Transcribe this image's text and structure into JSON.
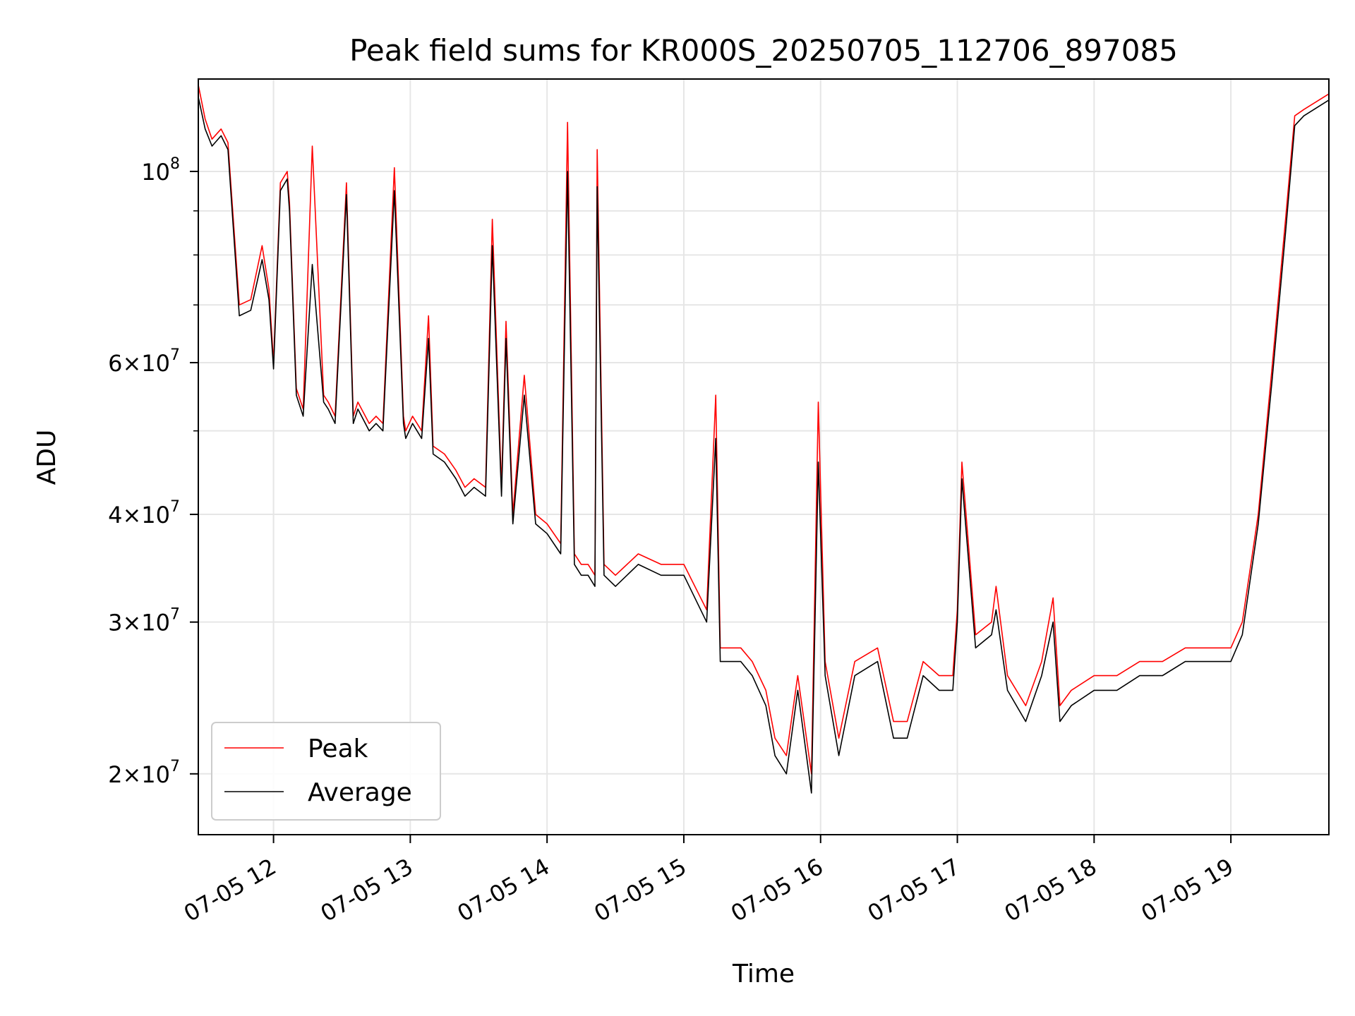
{
  "chart_data": {
    "type": "line",
    "title": "Peak field sums for KR000S_20250705_112706_897085",
    "xlabel": "Time",
    "ylabel": "ADU",
    "yscale": "log",
    "xlim": [
      "07-05 11:27",
      "07-05 19:43"
    ],
    "ylim": [
      17000000,
      128000000
    ],
    "grid": true,
    "legend_position": "lower-left",
    "x_tick_labels": [
      "07-05 12",
      "07-05 13",
      "07-05 14",
      "07-05 15",
      "07-05 16",
      "07-05 17",
      "07-05 18",
      "07-05 19"
    ],
    "x_ticks": [
      "07-05 12:00",
      "07-05 13:00",
      "07-05 14:00",
      "07-05 15:00",
      "07-05 16:00",
      "07-05 17:00",
      "07-05 18:00",
      "07-05 19:00"
    ],
    "y_ticks": [
      {
        "value": 20000000,
        "coef": "2",
        "exp": "7"
      },
      {
        "value": 30000000,
        "coef": "3",
        "exp": "7"
      },
      {
        "value": 40000000,
        "coef": "4",
        "exp": "7"
      },
      {
        "value": 60000000,
        "coef": "6",
        "exp": "7"
      },
      {
        "value": 100000000,
        "coef": "",
        "exp": "8"
      }
    ],
    "y_minor_ticks": [
      50000000,
      70000000,
      80000000,
      90000000
    ],
    "colors": {
      "Peak": "#ff0000",
      "Average": "#000000"
    },
    "series": [
      {
        "name": "Peak",
        "x": [
          "07-05 11:27",
          "07-05 11:30",
          "07-05 11:33",
          "07-05 11:37",
          "07-05 11:40",
          "07-05 11:45",
          "07-05 11:50",
          "07-05 11:55",
          "07-05 11:58",
          "07-05 12:00",
          "07-05 12:03",
          "07-05 12:06",
          "07-05 12:07",
          "07-05 12:10",
          "07-05 12:13",
          "07-05 12:17",
          "07-05 12:22",
          "07-05 12:24",
          "07-05 12:27",
          "07-05 12:32",
          "07-05 12:35",
          "07-05 12:37",
          "07-05 12:42",
          "07-05 12:45",
          "07-05 12:48",
          "07-05 12:53",
          "07-05 12:57",
          "07-05 12:58",
          "07-05 13:01",
          "07-05 13:05",
          "07-05 13:08",
          "07-05 13:10",
          "07-05 13:15",
          "07-05 13:20",
          "07-05 13:24",
          "07-05 13:28",
          "07-05 13:33",
          "07-05 13:36",
          "07-05 13:40",
          "07-05 13:42",
          "07-05 13:45",
          "07-05 13:50",
          "07-05 13:55",
          "07-05 14:00",
          "07-05 14:06",
          "07-05 14:09",
          "07-05 14:12",
          "07-05 14:15",
          "07-05 14:18",
          "07-05 14:21",
          "07-05 14:22",
          "07-05 14:25",
          "07-05 14:30",
          "07-05 14:40",
          "07-05 14:50",
          "07-05 15:00",
          "07-05 15:10",
          "07-05 15:14",
          "07-05 15:16",
          "07-05 15:20",
          "07-05 15:25",
          "07-05 15:30",
          "07-05 15:36",
          "07-05 15:40",
          "07-05 15:45",
          "07-05 15:50",
          "07-05 15:56",
          "07-05 15:59",
          "07-05 16:02",
          "07-05 16:08",
          "07-05 16:15",
          "07-05 16:25",
          "07-05 16:32",
          "07-05 16:38",
          "07-05 16:45",
          "07-05 16:52",
          "07-05 16:58",
          "07-05 17:00",
          "07-05 17:02",
          "07-05 17:08",
          "07-05 17:15",
          "07-05 17:17",
          "07-05 17:22",
          "07-05 17:30",
          "07-05 17:37",
          "07-05 17:42",
          "07-05 17:45",
          "07-05 17:50",
          "07-05 18:00",
          "07-05 18:10",
          "07-05 18:20",
          "07-05 18:30",
          "07-05 18:40",
          "07-05 18:50",
          "07-05 19:00",
          "07-05 19:05",
          "07-05 19:12",
          "07-05 19:18",
          "07-05 19:24",
          "07-05 19:28",
          "07-05 19:32",
          "07-05 19:43"
        ],
        "y": [
          126000000,
          115000000,
          109000000,
          112000000,
          108000000,
          70000000,
          71000000,
          82000000,
          73000000,
          60000000,
          97000000,
          100000000,
          92000000,
          56000000,
          53000000,
          107000000,
          55000000,
          54000000,
          52000000,
          97000000,
          52000000,
          54000000,
          51000000,
          52000000,
          51000000,
          101000000,
          52000000,
          50000000,
          52000000,
          50000000,
          68000000,
          48000000,
          47000000,
          45000000,
          43000000,
          44000000,
          43000000,
          88000000,
          43000000,
          67000000,
          40000000,
          58000000,
          40000000,
          39000000,
          37000000,
          114000000,
          36000000,
          35000000,
          35000000,
          34000000,
          106000000,
          35000000,
          34000000,
          36000000,
          35000000,
          35000000,
          31000000,
          55000000,
          28000000,
          28000000,
          28000000,
          27000000,
          25000000,
          22000000,
          21000000,
          26000000,
          20000000,
          54000000,
          27000000,
          22000000,
          27000000,
          28000000,
          23000000,
          23000000,
          27000000,
          26000000,
          26000000,
          31000000,
          46000000,
          29000000,
          30000000,
          33000000,
          26000000,
          24000000,
          27000000,
          32000000,
          24000000,
          25000000,
          26000000,
          26000000,
          27000000,
          27000000,
          28000000,
          28000000,
          28000000,
          30000000,
          40000000,
          59000000,
          88000000,
          116000000,
          118000000,
          123000000
        ]
      },
      {
        "name": "Average",
        "x": [
          "07-05 11:27",
          "07-05 11:30",
          "07-05 11:33",
          "07-05 11:37",
          "07-05 11:40",
          "07-05 11:45",
          "07-05 11:50",
          "07-05 11:55",
          "07-05 11:58",
          "07-05 12:00",
          "07-05 12:03",
          "07-05 12:06",
          "07-05 12:07",
          "07-05 12:10",
          "07-05 12:13",
          "07-05 12:17",
          "07-05 12:22",
          "07-05 12:24",
          "07-05 12:27",
          "07-05 12:32",
          "07-05 12:35",
          "07-05 12:37",
          "07-05 12:42",
          "07-05 12:45",
          "07-05 12:48",
          "07-05 12:53",
          "07-05 12:57",
          "07-05 12:58",
          "07-05 13:01",
          "07-05 13:05",
          "07-05 13:08",
          "07-05 13:10",
          "07-05 13:15",
          "07-05 13:20",
          "07-05 13:24",
          "07-05 13:28",
          "07-05 13:33",
          "07-05 13:36",
          "07-05 13:40",
          "07-05 13:42",
          "07-05 13:45",
          "07-05 13:50",
          "07-05 13:55",
          "07-05 14:00",
          "07-05 14:06",
          "07-05 14:09",
          "07-05 14:12",
          "07-05 14:15",
          "07-05 14:18",
          "07-05 14:21",
          "07-05 14:22",
          "07-05 14:25",
          "07-05 14:30",
          "07-05 14:40",
          "07-05 14:50",
          "07-05 15:00",
          "07-05 15:10",
          "07-05 15:14",
          "07-05 15:16",
          "07-05 15:20",
          "07-05 15:25",
          "07-05 15:30",
          "07-05 15:36",
          "07-05 15:40",
          "07-05 15:45",
          "07-05 15:50",
          "07-05 15:56",
          "07-05 15:59",
          "07-05 16:02",
          "07-05 16:08",
          "07-05 16:15",
          "07-05 16:25",
          "07-05 16:32",
          "07-05 16:38",
          "07-05 16:45",
          "07-05 16:52",
          "07-05 16:58",
          "07-05 17:00",
          "07-05 17:02",
          "07-05 17:08",
          "07-05 17:15",
          "07-05 17:17",
          "07-05 17:22",
          "07-05 17:30",
          "07-05 17:37",
          "07-05 17:42",
          "07-05 17:45",
          "07-05 17:50",
          "07-05 18:00",
          "07-05 18:10",
          "07-05 18:20",
          "07-05 18:30",
          "07-05 18:40",
          "07-05 18:50",
          "07-05 19:00",
          "07-05 19:05",
          "07-05 19:12",
          "07-05 19:18",
          "07-05 19:24",
          "07-05 19:28",
          "07-05 19:32",
          "07-05 19:43"
        ],
        "y": [
          122000000,
          112000000,
          107000000,
          110000000,
          106000000,
          68000000,
          69000000,
          79000000,
          71000000,
          59000000,
          95000000,
          98000000,
          90000000,
          55000000,
          52000000,
          78000000,
          54000000,
          53000000,
          51000000,
          94000000,
          51000000,
          53000000,
          50000000,
          51000000,
          50000000,
          95000000,
          51000000,
          49000000,
          51000000,
          49000000,
          64000000,
          47000000,
          46000000,
          44000000,
          42000000,
          43000000,
          42000000,
          82000000,
          42000000,
          64000000,
          39000000,
          55000000,
          39000000,
          38000000,
          36000000,
          100000000,
          35000000,
          34000000,
          34000000,
          33000000,
          96000000,
          34000000,
          33000000,
          35000000,
          34000000,
          34000000,
          30000000,
          49000000,
          27000000,
          27000000,
          27000000,
          26000000,
          24000000,
          21000000,
          20000000,
          25000000,
          19000000,
          46000000,
          26000000,
          21000000,
          26000000,
          27000000,
          22000000,
          22000000,
          26000000,
          25000000,
          25000000,
          30000000,
          44000000,
          28000000,
          29000000,
          31000000,
          25000000,
          23000000,
          26000000,
          30000000,
          23000000,
          24000000,
          25000000,
          25000000,
          26000000,
          26000000,
          27000000,
          27000000,
          27000000,
          29000000,
          39000000,
          57000000,
          85000000,
          113000000,
          116000000,
          121000000
        ]
      }
    ]
  }
}
